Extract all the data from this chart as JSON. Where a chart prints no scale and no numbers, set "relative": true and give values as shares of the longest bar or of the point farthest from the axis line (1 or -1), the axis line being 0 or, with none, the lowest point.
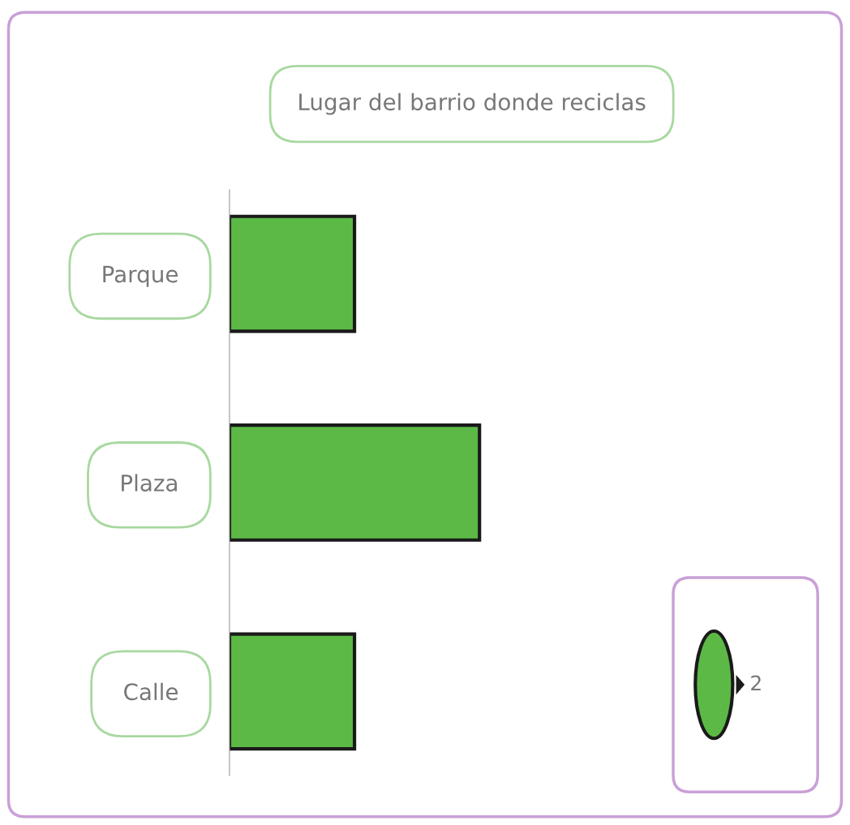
{
  "chart_data": {
    "type": "bar",
    "orientation": "horizontal",
    "relative": true,
    "title": "Lugar del barrio donde reciclas",
    "categories": [
      "Parque",
      "Plaza",
      "Calle"
    ],
    "values": [
      0.5,
      1,
      0.5
    ],
    "color": "#5cb946",
    "annotations": [
      "2"
    ]
  }
}
